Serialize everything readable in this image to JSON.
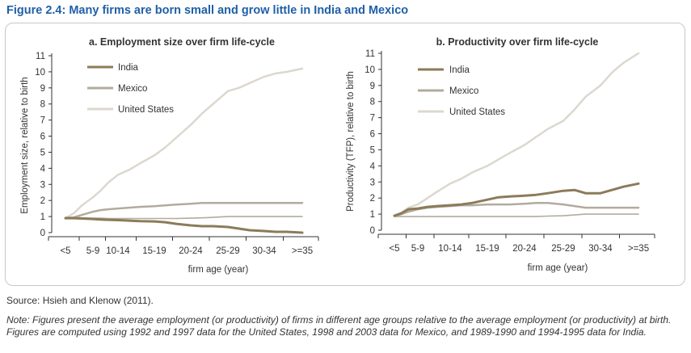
{
  "figure": {
    "title": "Figure 2.4: Many firms are born small and grow little in India and Mexico",
    "source": "Source: Hsieh and Klenow (2011).",
    "note": "Note: Figures present the average employment (or productivity) of firms in different age groups relative to the average employment (or productivity) at birth. Figures are computed using 1992 and 1997 data for the United States, 1998 and 2003 data for Mexico, and 1989-1990 and 1994-1995 data for India.",
    "colors": {
      "title": "#1f5fa8",
      "india": "#8c7b5a",
      "mexico": "#b2ab9e",
      "united_states": "#dcd8cf"
    }
  },
  "chart_data": [
    {
      "type": "line",
      "title": "a. Employment size over firm life-cycle",
      "xlabel": "firm age (year)",
      "ylabel": "Employment size, relative to birth",
      "categories": [
        "<5",
        "5-9",
        "10-14",
        "15-19",
        "20-24",
        "25-29",
        "30-34",
        ">=35"
      ],
      "ylim": [
        0,
        11
      ],
      "yticks": [
        "0",
        "1",
        "2",
        "3",
        "4",
        "5",
        "6",
        "7",
        "8",
        "9",
        "10",
        "11"
      ],
      "legend_position": "top-left",
      "x": [
        0,
        0.3,
        0.6,
        1,
        1.3,
        1.6,
        2,
        2.3,
        2.6,
        3,
        3.3,
        3.6,
        4,
        4.3,
        4.6,
        5,
        5.3,
        5.6,
        6,
        6.3,
        6.6,
        7
      ],
      "series": [
        {
          "name": "India",
          "values": [
            0.9,
            0.9,
            0.88,
            0.85,
            0.82,
            0.8,
            0.78,
            0.75,
            0.72,
            0.7,
            0.65,
            0.55,
            0.45,
            0.4,
            0.4,
            0.35,
            0.25,
            0.15,
            0.1,
            0.05,
            0.05,
            0.0
          ]
        },
        {
          "name": "Mexico",
          "values": [
            0.9,
            0.95,
            1.1,
            1.3,
            1.4,
            1.45,
            1.5,
            1.55,
            1.6,
            1.65,
            1.7,
            1.75,
            1.8,
            1.85,
            1.85,
            1.85,
            1.85,
            1.85,
            1.85,
            1.85,
            1.85,
            1.85
          ]
        },
        {
          "name": "United States",
          "values": [
            0.9,
            1.2,
            1.7,
            2.2,
            2.6,
            3.1,
            3.6,
            3.9,
            4.3,
            4.8,
            5.3,
            5.9,
            6.7,
            7.4,
            8.0,
            8.8,
            9.0,
            9.3,
            9.7,
            9.9,
            10.0,
            10.2
          ]
        },
        {
          "name": "",
          "values": [
            0.95,
            0.95,
            0.92,
            0.9,
            0.9,
            0.88,
            0.88,
            0.88,
            0.88,
            0.88,
            0.88,
            0.88,
            0.9,
            0.92,
            0.95,
            1.0,
            1.0,
            1.0,
            1.0,
            1.0,
            1.0,
            1.0
          ]
        }
      ]
    },
    {
      "type": "line",
      "title": "b. Productivity over firm life-cycle",
      "xlabel": "firm age (year)",
      "ylabel": "Productivity (TFP), relative to birth",
      "categories": [
        "<5",
        "5-9",
        "10-14",
        "15-19",
        "20-24",
        "25-29",
        "30-34",
        ">=35"
      ],
      "ylim": [
        0,
        11
      ],
      "yticks": [
        "0",
        "1",
        "2",
        "3",
        "4",
        "5",
        "6",
        "7",
        "8",
        "9",
        "10",
        "11"
      ],
      "legend_position": "top-left",
      "x": [
        0,
        0.3,
        0.6,
        1,
        1.3,
        1.6,
        2,
        2.3,
        2.6,
        3,
        3.3,
        3.6,
        4,
        4.3,
        4.6,
        5,
        5.3,
        5.6,
        6,
        6.3,
        6.6,
        7
      ],
      "series": [
        {
          "name": "India",
          "values": [
            0.9,
            1.05,
            1.3,
            1.35,
            1.45,
            1.5,
            1.55,
            1.6,
            1.7,
            1.9,
            2.05,
            2.1,
            2.15,
            2.2,
            2.3,
            2.45,
            2.5,
            2.3,
            2.3,
            2.5,
            2.7,
            2.9
          ]
        },
        {
          "name": "Mexico",
          "values": [
            0.9,
            1.0,
            1.15,
            1.3,
            1.4,
            1.45,
            1.5,
            1.55,
            1.55,
            1.6,
            1.6,
            1.6,
            1.65,
            1.7,
            1.7,
            1.6,
            1.5,
            1.4,
            1.4,
            1.4,
            1.4,
            1.4
          ]
        },
        {
          "name": "United States",
          "values": [
            0.9,
            1.1,
            1.4,
            1.6,
            2.0,
            2.4,
            2.9,
            3.2,
            3.6,
            4.0,
            4.4,
            4.8,
            5.3,
            5.8,
            6.3,
            6.8,
            7.5,
            8.3,
            9.0,
            9.8,
            10.4,
            11.0
          ]
        },
        {
          "name": "",
          "values": [
            0.85,
            0.85,
            0.85,
            0.85,
            0.85,
            0.85,
            0.85,
            0.85,
            0.85,
            0.85,
            0.85,
            0.85,
            0.85,
            0.85,
            0.88,
            0.9,
            0.95,
            1.0,
            1.0,
            1.0,
            1.0,
            1.0
          ]
        }
      ]
    }
  ]
}
